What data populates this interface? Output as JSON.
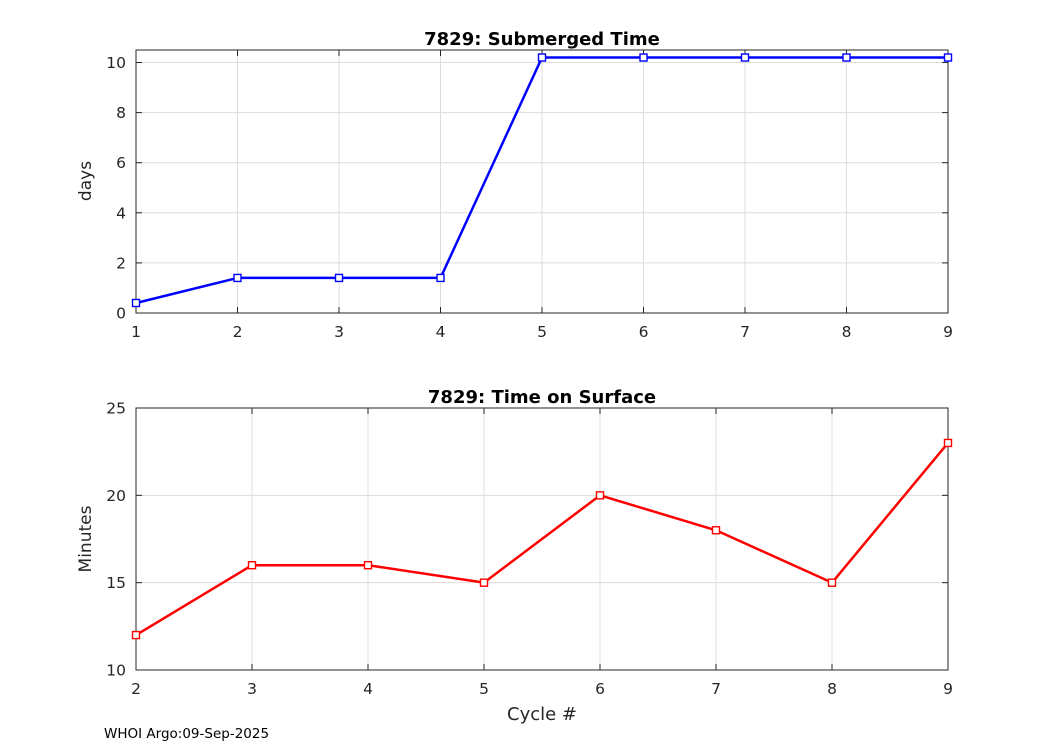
{
  "figure": {
    "footer": "WHOI Argo:09-Sep-2025"
  },
  "chart_data": [
    {
      "type": "line",
      "title": "7829: Submerged Time",
      "xlabel": "",
      "ylabel": "days",
      "x": [
        1,
        2,
        3,
        4,
        5,
        6,
        7,
        8,
        9
      ],
      "y": [
        0.4,
        1.4,
        1.4,
        1.4,
        10.2,
        10.2,
        10.2,
        10.2,
        10.2
      ],
      "xlim": [
        1,
        9
      ],
      "ylim": [
        0,
        10.5
      ],
      "xticks": [
        1,
        2,
        3,
        4,
        5,
        6,
        7,
        8,
        9
      ],
      "yticks": [
        0,
        2,
        4,
        6,
        8,
        10
      ],
      "line_color": "#0000ff",
      "marker": "square",
      "marker_fill": "#ffffff",
      "grid": true,
      "legend": null
    },
    {
      "type": "line",
      "title": "7829: Time on Surface",
      "xlabel": "Cycle #",
      "ylabel": "Minutes",
      "x": [
        2,
        3,
        4,
        5,
        6,
        7,
        8,
        9
      ],
      "y": [
        12,
        16,
        16,
        15,
        20,
        18,
        15,
        23
      ],
      "xlim": [
        2,
        9
      ],
      "ylim": [
        10,
        25
      ],
      "xticks": [
        2,
        3,
        4,
        5,
        6,
        7,
        8,
        9
      ],
      "yticks": [
        10,
        15,
        20,
        25
      ],
      "line_color": "#ff0000",
      "marker": "square",
      "marker_fill": "#ffffff",
      "grid": true,
      "legend": null
    }
  ],
  "style": {
    "grid_color": "#dcdcdc",
    "axis_color": "#262626",
    "tick_label_color": "#262626"
  }
}
